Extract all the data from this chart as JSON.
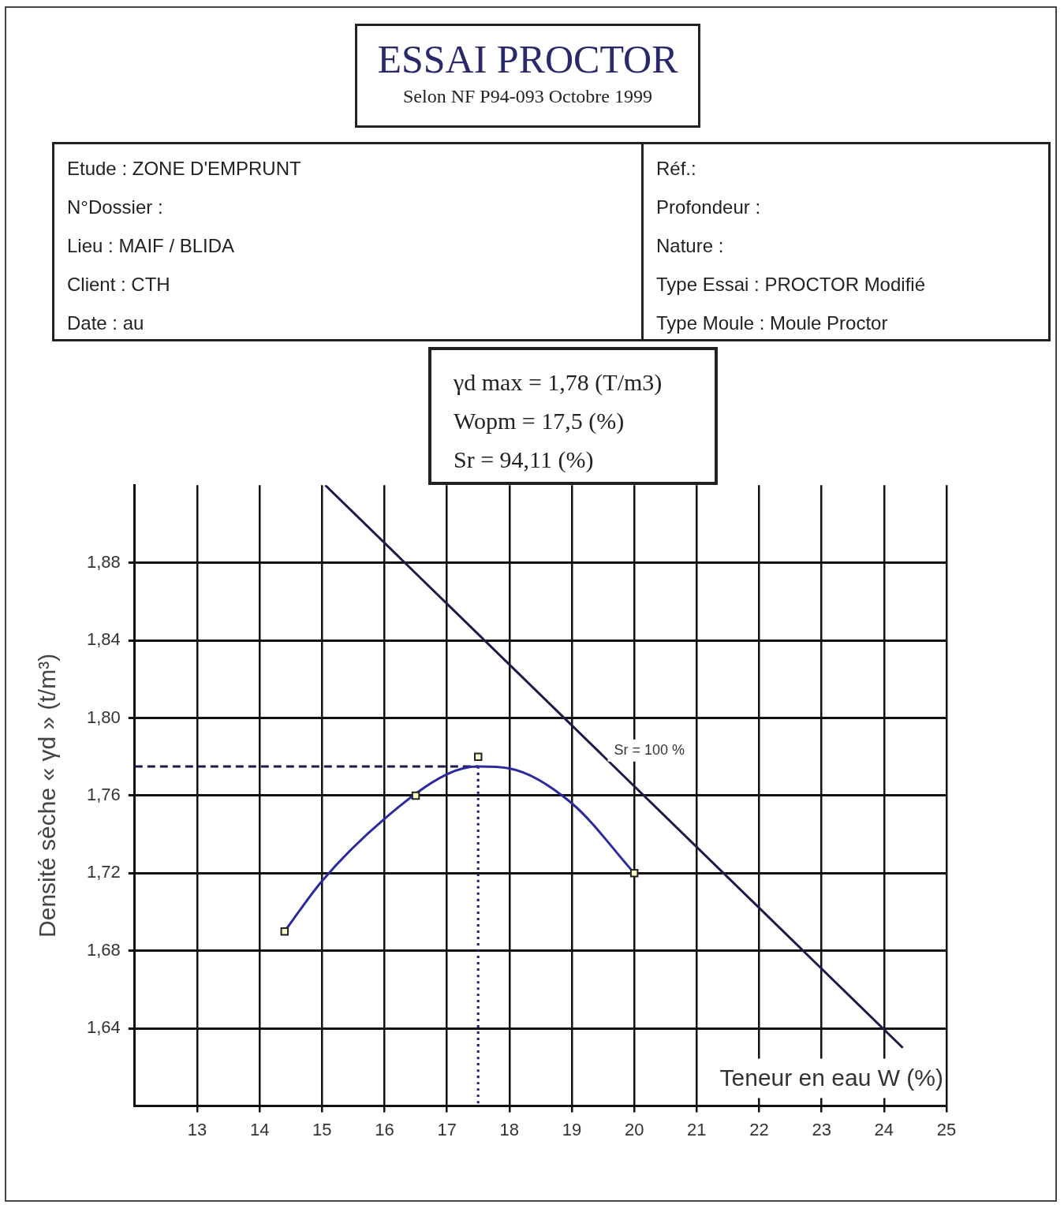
{
  "chart_data": {
    "type": "line",
    "title": "ESSAI PROCTOR",
    "subtitle": "Selon NF P94-093 Octobre 1999",
    "xlabel": "Teneur en eau W (%)",
    "ylabel": "Densité sèche « γd » (t/m³)",
    "xlim": [
      12,
      25
    ],
    "xticks": [
      13,
      14,
      15,
      16,
      17,
      18,
      19,
      20,
      21,
      22,
      23,
      24,
      25
    ],
    "ylim": [
      1.6,
      1.92
    ],
    "yticks": [
      {
        "value": 1.64,
        "label": "1,64"
      },
      {
        "value": 1.68,
        "label": "1,68"
      },
      {
        "value": 1.72,
        "label": "1,72"
      },
      {
        "value": 1.76,
        "label": "1,76"
      },
      {
        "value": 1.8,
        "label": "1,80"
      },
      {
        "value": 1.84,
        "label": "1,84"
      },
      {
        "value": 1.88,
        "label": "1,88"
      }
    ],
    "grid": true,
    "legend": false,
    "series": [
      {
        "type": "line",
        "color": "#2b2b9e",
        "marker": "none",
        "x": [
          14.4,
          15,
          16,
          17,
          17.5,
          18,
          19,
          20
        ],
        "values": [
          1.69,
          1.716,
          1.748,
          1.771,
          1.775,
          1.774,
          1.756,
          1.72
        ]
      },
      {
        "type": "scatter",
        "color": "#222222",
        "marker": "square",
        "x": [
          14.4,
          16.5,
          17.5,
          20
        ],
        "values": [
          1.69,
          1.76,
          1.78,
          1.72
        ]
      },
      {
        "type": "line",
        "color": "#1c1c4c",
        "marker": "none",
        "x": [
          15.05,
          24.3
        ],
        "values": [
          1.92,
          1.63
        ]
      },
      {
        "type": "line",
        "color": "#1c1c4c",
        "marker": "none",
        "line_style": "dashed",
        "x": [
          12,
          17.5
        ],
        "values": [
          1.775,
          1.775
        ]
      },
      {
        "type": "line",
        "color": "#1c1c6e",
        "marker": "none",
        "line_style": "dotted",
        "x": [
          17.5,
          17.5
        ],
        "values": [
          1.775,
          1.6
        ]
      }
    ],
    "annotations": [
      "Etude :  ZONE D'EMPRUNT",
      "N°Dossier :",
      "Lieu :  MAIF / BLIDA",
      "Client :  CTH",
      "Date :  au",
      "Réf.:",
      "Profondeur :",
      "Nature  :",
      "Type Essai :  PROCTOR Modifié",
      "Type Moule :  Moule Proctor",
      "γd max  = 1,78  (T/m3)",
      "Wopm  = 17,5  (%)",
      "Sr  = 94,11  (%)",
      {
        "text": "Sr = 100 %",
        "x": 19.5,
        "y": 1.78
      }
    ]
  }
}
